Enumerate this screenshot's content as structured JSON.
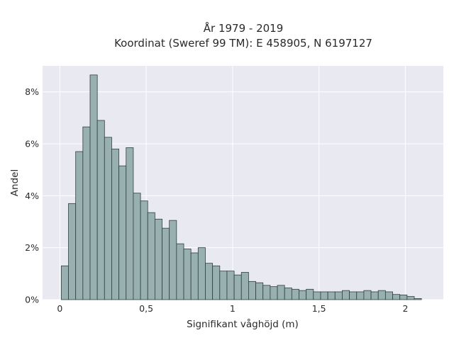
{
  "chart_data": {
    "type": "bar",
    "title_line1": "År 1979 - 2019",
    "title_line2": "Koordinat (Sweref 99 TM): E 458905, N 6197127",
    "xlabel": "Signifikant våghöjd (m)",
    "ylabel": "Andel",
    "xlim": [
      -0.1,
      2.22
    ],
    "ylim": [
      0,
      9
    ],
    "bin_start": 0.0083,
    "bin_width": 0.0417,
    "x_ticks": [
      {
        "value": 0,
        "label": "0"
      },
      {
        "value": 0.5,
        "label": "0,5"
      },
      {
        "value": 1,
        "label": "1"
      },
      {
        "value": 1.5,
        "label": "1,5"
      },
      {
        "value": 2,
        "label": "2"
      }
    ],
    "y_ticks": [
      {
        "value": 0,
        "label": "0%"
      },
      {
        "value": 2,
        "label": "2%"
      },
      {
        "value": 4,
        "label": "4%"
      },
      {
        "value": 6,
        "label": "6%"
      },
      {
        "value": 8,
        "label": "8%"
      }
    ],
    "grid": true,
    "bar_color": "#98b0b0",
    "bar_edge": "#2f3f3f",
    "background": "#e9e9f2",
    "values": [
      1.3,
      3.7,
      5.7,
      6.65,
      8.65,
      6.9,
      6.25,
      5.8,
      5.15,
      5.85,
      4.1,
      3.8,
      3.35,
      3.1,
      2.75,
      3.05,
      2.15,
      1.95,
      1.8,
      2.0,
      1.4,
      1.3,
      1.1,
      1.1,
      0.95,
      1.05,
      0.7,
      0.65,
      0.55,
      0.5,
      0.55,
      0.45,
      0.4,
      0.35,
      0.4,
      0.3,
      0.3,
      0.3,
      0.3,
      0.35,
      0.3,
      0.3,
      0.35,
      0.3,
      0.35,
      0.3,
      0.2,
      0.18,
      0.12,
      0.04
    ]
  }
}
